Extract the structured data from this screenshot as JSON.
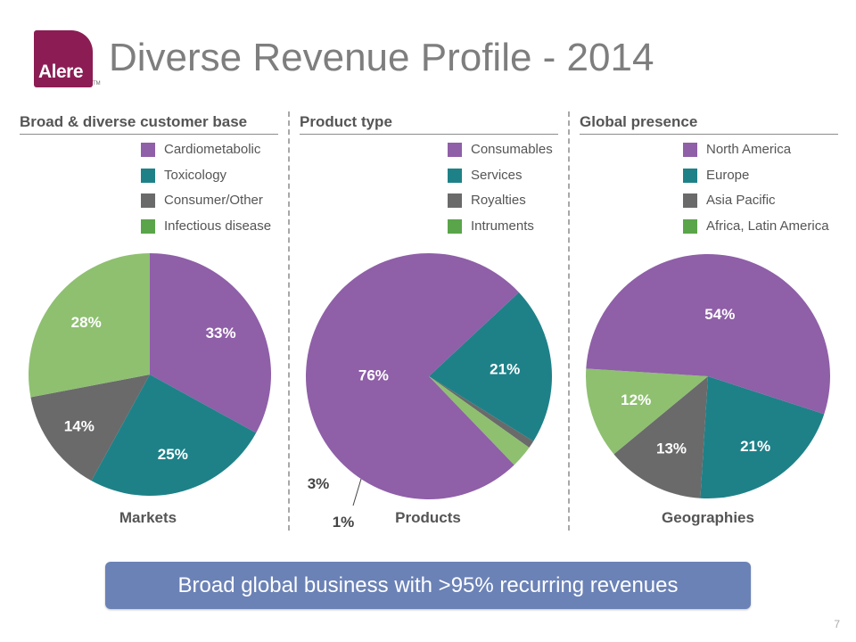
{
  "logo": {
    "text": "Alere",
    "tm": "TM"
  },
  "title": "Diverse Revenue Profile - 2014",
  "banner": "Broad global business with >95% recurring revenues",
  "page_number": "7",
  "colors": {
    "purple": "#8f5fa8",
    "teal": "#1e8188",
    "gray": "#6a6a6a",
    "green": "#8ec070",
    "green_swatch": "#5aa54a",
    "banner": "#6b82b6"
  },
  "chart_data": [
    {
      "type": "pie",
      "section_title": "Broad & diverse customer base",
      "name": "Markets",
      "start_angle_deg": 0,
      "legend": [
        {
          "label": "Cardiometabolic",
          "color": "#8f5fa8"
        },
        {
          "label": "Toxicology",
          "color": "#1e8188"
        },
        {
          "label": "Consumer/Other",
          "color": "#6a6a6a"
        },
        {
          "label": "Infectious disease",
          "color": "#5aa54a"
        }
      ],
      "slices": [
        {
          "label": "Cardiometabolic",
          "value": 33,
          "text": "33%",
          "color": "#8f5fa8"
        },
        {
          "label": "Toxicology",
          "value": 25,
          "text": "25%",
          "color": "#1e8188"
        },
        {
          "label": "Consumer/Other",
          "value": 14,
          "text": "14%",
          "color": "#6a6a6a"
        },
        {
          "label": "Infectious disease",
          "value": 28,
          "text": "28%",
          "color": "#8ec070"
        }
      ]
    },
    {
      "type": "pie",
      "section_title": "Product type",
      "name": "Products",
      "start_angle_deg": 47,
      "legend": [
        {
          "label": "Consumables",
          "color": "#8f5fa8"
        },
        {
          "label": "Services",
          "color": "#1e8188"
        },
        {
          "label": "Royalties",
          "color": "#6a6a6a"
        },
        {
          "label": "Intruments",
          "color": "#5aa54a"
        }
      ],
      "slices": [
        {
          "label": "Services",
          "value": 21,
          "text": "21%",
          "color": "#1e8188"
        },
        {
          "label": "Royalties",
          "value": 1,
          "text": "1%",
          "color": "#6a6a6a"
        },
        {
          "label": "Intruments",
          "value": 3,
          "text": "3%",
          "color": "#8ec070"
        },
        {
          "label": "Consumables",
          "value": 76,
          "text": "76%",
          "color": "#8f5fa8"
        }
      ]
    },
    {
      "type": "pie",
      "section_title": "Global presence",
      "name": "Geographies",
      "start_angle_deg": 108,
      "legend": [
        {
          "label": "North America",
          "color": "#8f5fa8"
        },
        {
          "label": "Europe",
          "color": "#1e8188"
        },
        {
          "label": "Asia Pacific",
          "color": "#6a6a6a"
        },
        {
          "label": "Africa, Latin America",
          "color": "#5aa54a"
        }
      ],
      "slices": [
        {
          "label": "Europe",
          "value": 21,
          "text": "21%",
          "color": "#1e8188"
        },
        {
          "label": "Asia Pacific",
          "value": 13,
          "text": "13%",
          "color": "#6a6a6a"
        },
        {
          "label": "Africa, Latin America",
          "value": 12,
          "text": "12%",
          "color": "#8ec070"
        },
        {
          "label": "North America",
          "value": 54,
          "text": "54%",
          "color": "#8f5fa8"
        }
      ]
    }
  ]
}
